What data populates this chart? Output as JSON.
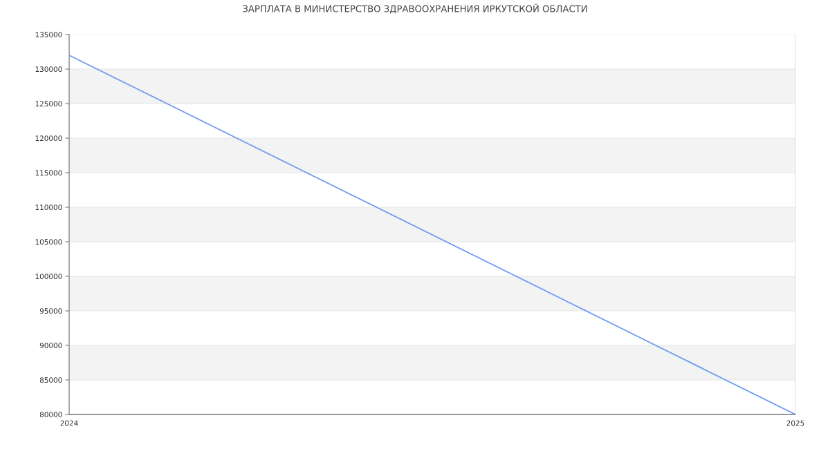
{
  "chart_data": {
    "type": "line",
    "title": "ЗАРПЛАТА В МИНИСТЕРСТВО ЗДРАВООХРАНЕНИЯ ИРКУТСКОЙ ОБЛАСТИ",
    "x": [
      2024,
      2025
    ],
    "series": [
      {
        "color": "#6d9cf5",
        "values": [
          132000,
          80000
        ]
      }
    ],
    "xlim": [
      2024,
      2025
    ],
    "xticks": [
      2024,
      2025
    ],
    "ylim": [
      80000,
      135000
    ],
    "yticks": [
      80000,
      85000,
      90000,
      95000,
      100000,
      105000,
      110000,
      115000,
      120000,
      125000,
      130000,
      135000
    ],
    "grid": "y",
    "bands": [
      {
        "axis": "y",
        "from": 85000,
        "to": 90000,
        "color": "#f3f3f3"
      },
      {
        "axis": "y",
        "from": 95000,
        "to": 100000,
        "color": "#f3f3f3"
      },
      {
        "axis": "y",
        "from": 105000,
        "to": 110000,
        "color": "#f3f3f3"
      },
      {
        "axis": "y",
        "from": 115000,
        "to": 120000,
        "color": "#f3f3f3"
      },
      {
        "axis": "y",
        "from": 125000,
        "to": 130000,
        "color": "#f3f3f3"
      }
    ]
  }
}
